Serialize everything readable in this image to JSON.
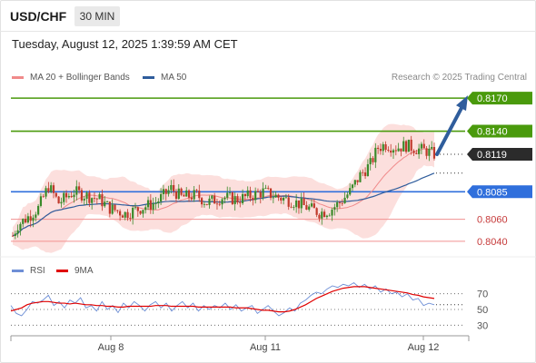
{
  "header": {
    "symbol": "USD/CHF",
    "timeframe": "30 MIN",
    "datetime": "Tuesday, August 12, 2025 1:39:59 AM CET"
  },
  "legend": {
    "ma20": "MA 20 + Bollinger Bands",
    "ma50": "MA 50",
    "credit": "Research © 2025 Trading Central",
    "ma20_color": "#f08a8a",
    "ma50_color": "#2f5d9c"
  },
  "rsi_legend": {
    "rsi": "RSI",
    "ma": "9MA",
    "rsi_color": "#6e8fd6",
    "ma_color": "#e00000"
  },
  "colors": {
    "green": "#4a9a0c",
    "blue_level": "#2f6fdc",
    "red_level": "#f19090",
    "dark_label": "#2b2b2b",
    "arrow": "#2f5d9c",
    "band_fill": "#fbd4d2",
    "candle_up": "#3a8a2a",
    "candle_down": "#c0392b"
  },
  "chart_data": [
    {
      "type": "candlestick",
      "title": "USD/CHF",
      "y_range": [
        0.803,
        0.818
      ],
      "price_labels": [
        {
          "value": 0.817,
          "text": "0.8170",
          "style": "green"
        },
        {
          "value": 0.814,
          "text": "0.8140",
          "style": "green"
        },
        {
          "value": 0.8119,
          "text": "0.8119",
          "style": "dark"
        },
        {
          "value": 0.8085,
          "text": "0.8085",
          "style": "blue"
        },
        {
          "value": 0.806,
          "text": "0.8060",
          "style": "red"
        },
        {
          "value": 0.804,
          "text": "0.8040",
          "style": "red"
        }
      ],
      "x_labels": [
        "Aug 8",
        "Aug 11",
        "Aug 12"
      ],
      "series_anchor_points": [
        [
          0,
          0.8045
        ],
        [
          2,
          0.8055
        ],
        [
          6,
          0.8062
        ],
        [
          10,
          0.807
        ],
        [
          14,
          0.809
        ],
        [
          18,
          0.8075
        ],
        [
          24,
          0.8085
        ],
        [
          28,
          0.8082
        ],
        [
          34,
          0.8078
        ],
        [
          38,
          0.807
        ],
        [
          44,
          0.8065
        ],
        [
          50,
          0.807
        ],
        [
          56,
          0.8075
        ],
        [
          62,
          0.8088
        ],
        [
          66,
          0.808
        ],
        [
          72,
          0.8082
        ],
        [
          76,
          0.8075
        ],
        [
          82,
          0.808
        ],
        [
          88,
          0.8078
        ],
        [
          94,
          0.8082
        ],
        [
          98,
          0.8085
        ],
        [
          104,
          0.808
        ],
        [
          110,
          0.8076
        ],
        [
          116,
          0.807
        ],
        [
          120,
          0.8066
        ],
        [
          124,
          0.8068
        ],
        [
          128,
          0.8075
        ],
        [
          132,
          0.8085
        ],
        [
          136,
          0.81
        ],
        [
          140,
          0.811
        ],
        [
          143,
          0.8125
        ],
        [
          146,
          0.8128
        ],
        [
          150,
          0.8125
        ],
        [
          154,
          0.8127
        ],
        [
          158,
          0.8124
        ],
        [
          162,
          0.8122
        ],
        [
          165,
          0.8119
        ]
      ],
      "forecast": {
        "from": 0.8119,
        "to": 0.817
      }
    },
    {
      "type": "line",
      "title": "RSI",
      "y_ticks": [
        70,
        50,
        30
      ],
      "y_range": [
        20,
        80
      ],
      "series": [
        {
          "name": "RSI",
          "values": [
            55,
            45,
            42,
            50,
            60,
            58,
            62,
            68,
            55,
            60,
            52,
            62,
            58,
            65,
            52,
            55,
            48,
            60,
            50,
            55,
            46,
            58,
            52,
            60,
            55,
            48,
            56,
            60,
            52,
            58,
            48,
            55,
            60,
            52,
            58,
            48,
            55,
            50,
            55,
            52,
            58,
            50,
            56,
            48,
            52,
            55,
            45,
            50,
            55,
            48,
            42,
            46,
            52,
            48,
            58,
            62,
            68,
            72,
            70,
            76,
            80,
            78,
            82,
            80,
            84,
            78,
            82,
            76,
            80,
            72,
            76,
            70,
            72,
            66,
            70,
            62,
            64,
            55,
            58,
            56
          ]
        },
        {
          "name": "9MA",
          "values": [
            48,
            50,
            52,
            56,
            58,
            59,
            60,
            60,
            59,
            58,
            58,
            57,
            58,
            57,
            56,
            56,
            55,
            55,
            54,
            54,
            53,
            53,
            54,
            54,
            54,
            54,
            54,
            55,
            55,
            55,
            54,
            54,
            54,
            54,
            54,
            53,
            53,
            53,
            53,
            53,
            53,
            53,
            52,
            52,
            52,
            51,
            50,
            49,
            49,
            48,
            47,
            47,
            48,
            50,
            53,
            56,
            60,
            64,
            67,
            70,
            73,
            75,
            77,
            78,
            79,
            79,
            79,
            78,
            77,
            76,
            75,
            74,
            73,
            72,
            71,
            69,
            68,
            66,
            65,
            64
          ]
        }
      ]
    }
  ]
}
